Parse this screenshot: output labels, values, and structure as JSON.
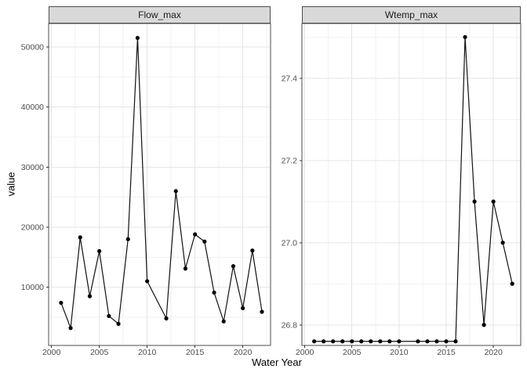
{
  "figure": {
    "x_axis_title": "Water Year",
    "y_axis_title": "value"
  },
  "chart_data": {
    "type": "line",
    "title": "",
    "xlabel": "Water Year",
    "ylabel": "value",
    "legend": "none",
    "grid": true,
    "x": [
      2001,
      2002,
      2003,
      2004,
      2005,
      2006,
      2007,
      2008,
      2009,
      2010,
      2012,
      2013,
      2014,
      2015,
      2016,
      2017,
      2018,
      2019,
      2020,
      2021,
      2022
    ],
    "xlim": [
      1999.7,
      2022.9
    ],
    "x_ticks": {
      "values": [
        2000,
        2005,
        2010,
        2015,
        2020
      ],
      "labels": [
        "2000",
        "2005",
        "2010",
        "2015",
        "2020"
      ]
    },
    "x_minor": [
      2002.5,
      2007.5,
      2012.5,
      2017.5,
      2022.5
    ],
    "facets": [
      {
        "label": "Flow_max",
        "values": [
          7400,
          3200,
          18300,
          8500,
          16000,
          5200,
          3900,
          18000,
          51500,
          11000,
          4800,
          26000,
          13100,
          18800,
          17600,
          9100,
          4300,
          13500,
          6500,
          16100,
          5900
        ],
        "ylim": [
          300,
          53900
        ],
        "y_ticks": {
          "values": [
            10000,
            20000,
            30000,
            40000,
            50000
          ],
          "labels": [
            "10000",
            "20000",
            "30000",
            "40000",
            "50000"
          ]
        },
        "y_minor": [
          5000,
          15000,
          25000,
          35000,
          45000
        ]
      },
      {
        "label": "Wtemp_max",
        "values": [
          26.76,
          26.76,
          26.76,
          26.76,
          26.76,
          26.76,
          26.76,
          26.76,
          26.76,
          26.76,
          26.76,
          26.76,
          26.76,
          26.76,
          26.76,
          27.5,
          27.1,
          26.8,
          27.1,
          27.0,
          26.9
        ],
        "ylim": [
          26.75,
          27.533
        ],
        "y_ticks": {
          "values": [
            26.8,
            27.0,
            27.2,
            27.4
          ],
          "labels": [
            "26.8",
            "27.0",
            "27.2",
            "27.4"
          ]
        },
        "y_minor": [
          26.9,
          27.1,
          27.3,
          27.5
        ]
      }
    ],
    "colors": {
      "line": "#111111",
      "point": "#000000",
      "strip_bg": "#d9d9d9",
      "strip_text": "#1a1a1a",
      "panel_border": "#4d4d4d",
      "grid_major": "#e5e5e5",
      "grid_minor": "#f2f2f2",
      "axis_text": "#4d4d4d",
      "tick_mark": "#333333",
      "axis_title": "#000000"
    }
  }
}
